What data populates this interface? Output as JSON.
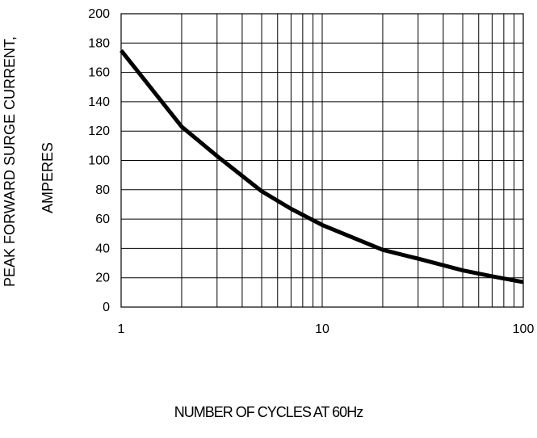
{
  "chart_data": {
    "type": "line",
    "title": "",
    "xlabel": "NUMBER  OF  CYCLES AT 60Hz",
    "ylabel": [
      "PEAK FORWARD SURGE CURRENT,",
      "AMPERES"
    ],
    "xscale": "log",
    "xlim": [
      1,
      100
    ],
    "ylim": [
      0,
      200
    ],
    "x_ticks": [
      "1",
      "10",
      "100"
    ],
    "y_ticks": [
      "0",
      "20",
      "40",
      "60",
      "80",
      "100",
      "120",
      "140",
      "160",
      "180",
      "200"
    ],
    "grid": true,
    "legend": "none",
    "series": [
      {
        "color": "#000000",
        "x": [
          1,
          2,
          3,
          5,
          7,
          10,
          20,
          30,
          50,
          70,
          100
        ],
        "y": [
          175,
          123,
          103,
          79,
          67,
          56,
          39,
          33,
          25,
          21,
          17
        ]
      }
    ]
  }
}
